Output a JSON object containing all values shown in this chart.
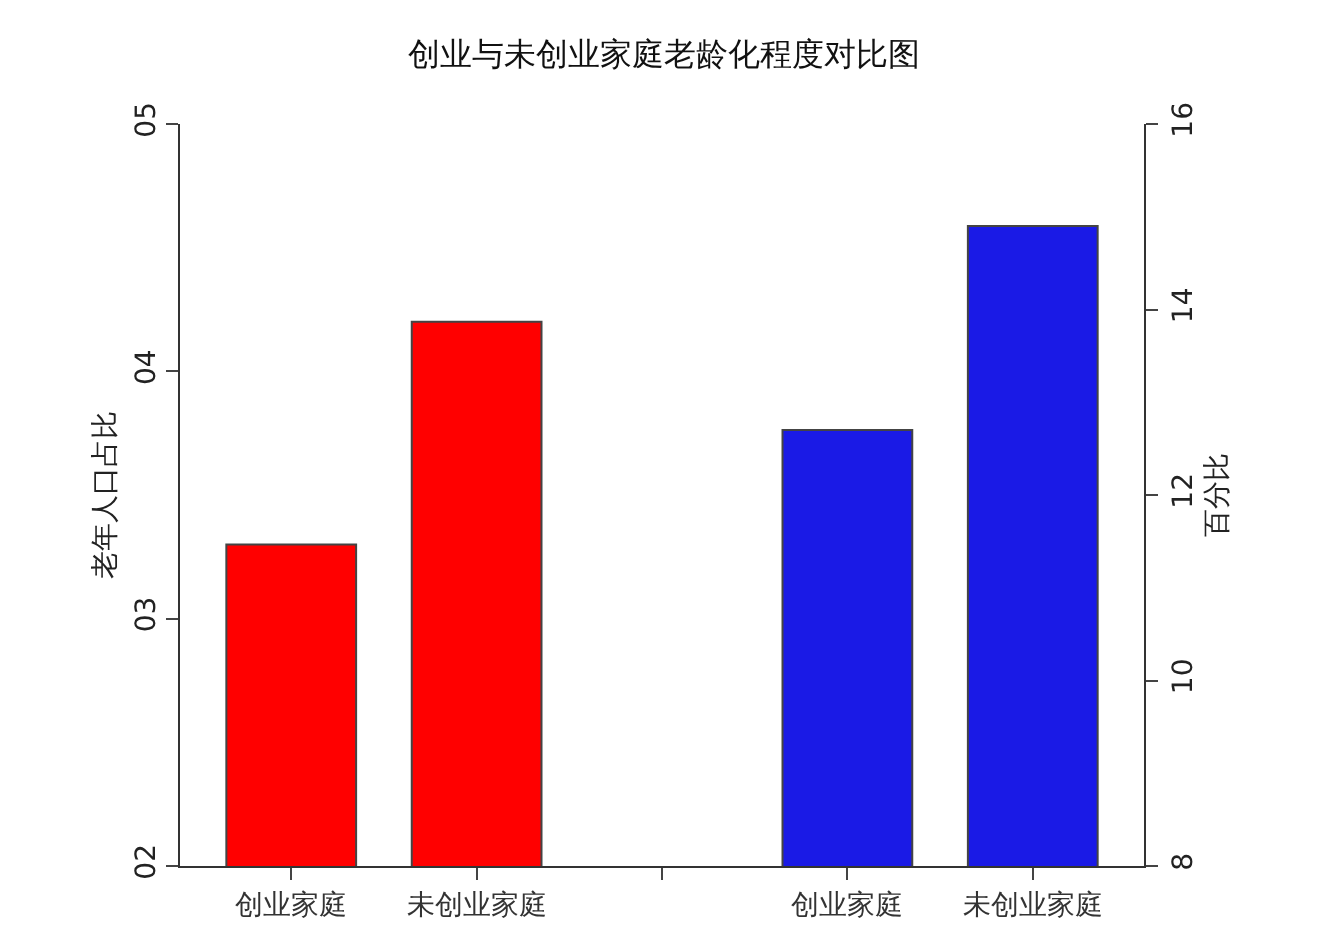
{
  "chart_data": {
    "type": "bar",
    "title": "创业与未创业家庭老龄化程度对比图",
    "ylabel": "老年人口占比",
    "y2label": "百分比",
    "categories": [
      "创业家庭",
      "未创业家庭",
      null,
      "创业家庭",
      "未创业家庭"
    ],
    "series": [
      {
        "color": "#ff0000",
        "values": [
          3.3,
          4.2,
          null,
          null,
          null
        ]
      },
      {
        "color": "#1a1ae6",
        "axis": "y2",
        "values": [
          null,
          null,
          null,
          12.7,
          14.9
        ]
      }
    ],
    "ylim": [
      2,
      5
    ],
    "yticks": [
      {
        "value": 2,
        "label": "02"
      },
      {
        "value": 3,
        "label": "03"
      },
      {
        "value": 4,
        "label": "04"
      },
      {
        "value": 5,
        "label": "05"
      }
    ],
    "y2lim": [
      8,
      16
    ],
    "y2ticks": [
      8,
      10,
      12,
      14,
      16
    ],
    "grid": false
  }
}
